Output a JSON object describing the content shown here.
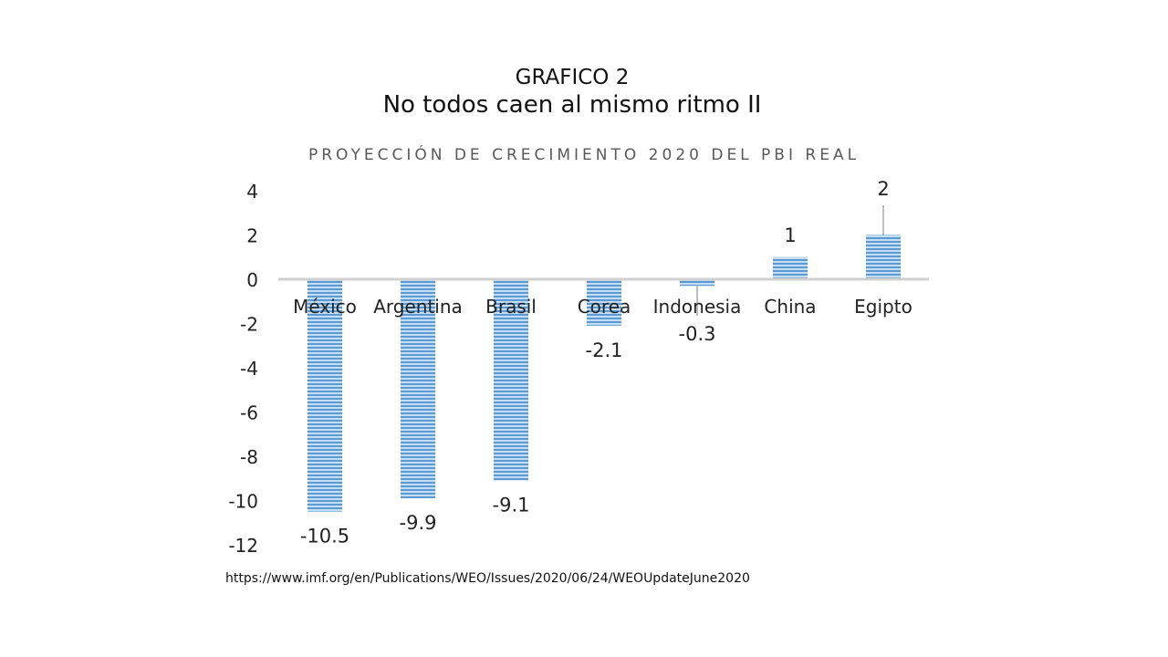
{
  "slide": {
    "heading": "GRAFICO 2",
    "subheading": "No todos caen al mismo ritmo II",
    "source": "https://www.imf.org/en/Publications/WEO/Issues/2020/06/24/WEOUpdateJune2020"
  },
  "chart_data": {
    "type": "bar",
    "title": "PROYECCIÓN DE CRECIMIENTO 2020 DEL PBI REAL",
    "xlabel": "",
    "ylabel": "",
    "categories": [
      "México",
      "Argentina",
      "Brasil",
      "Corea",
      "Indonesia",
      "China",
      "Egipto"
    ],
    "values": [
      -10.5,
      -9.9,
      -9.1,
      -2.1,
      -0.3,
      1,
      2
    ],
    "data_labels": [
      "-10.5",
      "-9.9",
      "-9.1",
      "-2.1",
      "-0.3",
      "1",
      "2"
    ],
    "y_ticks": [
      4,
      2,
      0,
      -2,
      -4,
      -6,
      -8,
      -10,
      -12
    ],
    "ylim": [
      -12,
      4
    ],
    "grid": false,
    "legend": "none",
    "bar_color": "#5b9bd5",
    "axis_color": "#d0d0d0"
  }
}
